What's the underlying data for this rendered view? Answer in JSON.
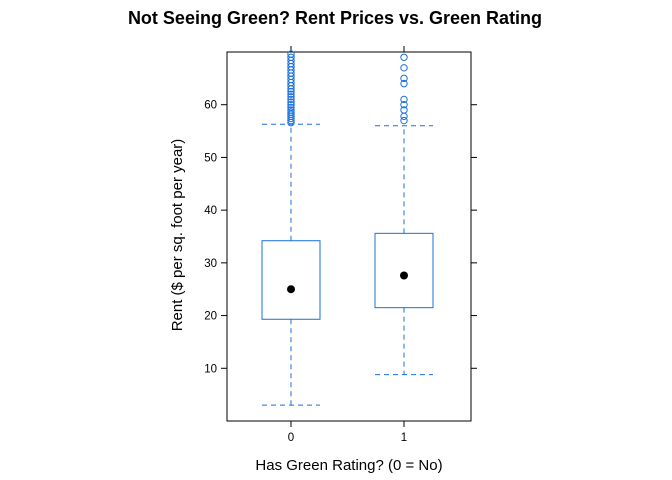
{
  "chart_data": {
    "type": "box",
    "title": "Not Seeing Green? Rent Prices vs. Green Rating",
    "xlabel": "Has Green Rating? (0 = No)",
    "ylabel": "Rent ($ per sq. foot per year)",
    "categories": [
      "0",
      "1"
    ],
    "ylim": [
      0,
      70
    ],
    "yticks": [
      10,
      20,
      30,
      40,
      50,
      60
    ],
    "grid": false,
    "color": "#1a6fdf",
    "boxes": [
      {
        "category": "0",
        "whisker_low": 3.0,
        "q1": 19.3,
        "mean": 25.0,
        "q3": 34.2,
        "whisker_high": 56.3,
        "outliers": [
          56.6,
          57.0,
          57.4,
          57.8,
          58.2,
          58.6,
          59.0,
          59.5,
          60.0,
          60.5,
          61.0,
          61.5,
          62.0,
          62.5,
          63.0,
          63.6,
          64.2,
          64.8,
          65.4,
          66.0,
          66.6,
          67.2,
          67.8,
          68.4,
          69.0,
          69.6
        ]
      },
      {
        "category": "1",
        "whisker_low": 8.8,
        "q1": 21.5,
        "mean": 27.6,
        "q3": 35.6,
        "whisker_high": 56.0,
        "outliers": [
          57.0,
          57.8,
          59.0,
          60.0,
          61.0,
          64.0,
          65.0,
          67.0,
          69.0
        ]
      }
    ]
  }
}
